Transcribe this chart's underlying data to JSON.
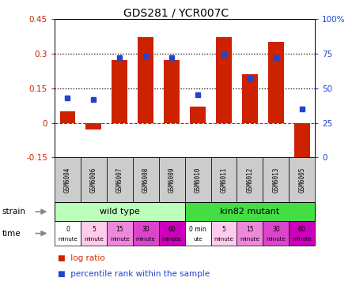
{
  "title": "GDS281 / YCR007C",
  "samples": [
    "GSM6004",
    "GSM6006",
    "GSM6007",
    "GSM6008",
    "GSM6009",
    "GSM6010",
    "GSM6011",
    "GSM6012",
    "GSM6013",
    "GSM6005"
  ],
  "log_ratio": [
    0.05,
    -0.03,
    0.27,
    0.37,
    0.27,
    0.07,
    0.37,
    0.21,
    0.35,
    -0.19
  ],
  "percentile_rank": [
    43,
    42,
    72,
    73,
    72,
    45,
    74,
    57,
    72,
    35
  ],
  "bar_color": "#cc2200",
  "square_color": "#2244cc",
  "ylim_left": [
    -0.15,
    0.45
  ],
  "ylim_right": [
    0,
    100
  ],
  "wild_type_color": "#bbffbb",
  "kin82_color": "#44dd44",
  "sample_box_color": "#cccccc",
  "time_colors": [
    "#ffffff",
    "#ffccee",
    "#ee88dd",
    "#dd44cc",
    "#cc00bb",
    "#ffffff",
    "#ffccee",
    "#ee88dd",
    "#dd44cc",
    "#cc00bb"
  ],
  "time_labels_line1": [
    "0",
    "5",
    "15",
    "30",
    "60",
    "0 min",
    "5",
    "15",
    "30",
    "60"
  ],
  "time_labels_line2": [
    "minute",
    "minute",
    "minute",
    "minute",
    "minute",
    "ute",
    "minute",
    "minute",
    "minute",
    "minute"
  ],
  "legend_log_ratio": "log ratio",
  "legend_percentile": "percentile rank within the sample"
}
